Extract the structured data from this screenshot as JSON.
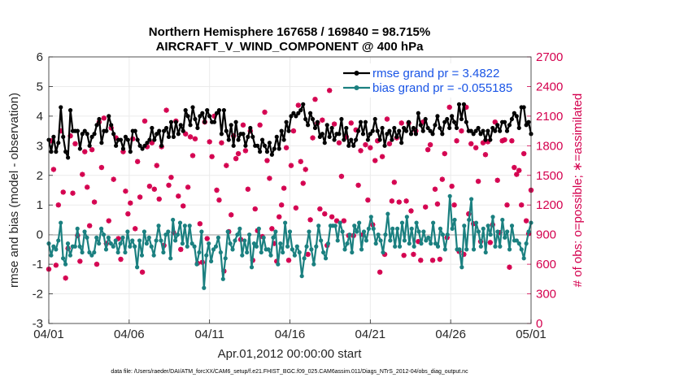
{
  "chart_data": {
    "type": "line",
    "title": "Northern Hemisphere 167658 / 169840 = 98.715%",
    "subtitle": "AIRCRAFT_V_WIND_COMPONENT @ 400 hPa",
    "xlabel": "Apr.01,2012 00:00:00 start",
    "ylabel": "rmse and bias (model - observation)",
    "y2label": "# of obs: o=possible; ∗=assimilated",
    "xlim": [
      0,
      30
    ],
    "ylim": [
      -3,
      6
    ],
    "y2lim": [
      0,
      2700
    ],
    "x_ticks": [
      0,
      5,
      10,
      15,
      20,
      25,
      30
    ],
    "x_tick_labels": [
      "04/01",
      "04/06",
      "04/11",
      "04/16",
      "04/21",
      "04/26",
      "05/01"
    ],
    "y_ticks": [
      "-3",
      "-2",
      "-1",
      "0",
      "1",
      "2",
      "3",
      "4",
      "5",
      "6"
    ],
    "y2_ticks": [
      "0",
      "300",
      "600",
      "900",
      "1200",
      "1500",
      "1800",
      "2100",
      "2400",
      "2700"
    ],
    "footnote": "data file: /Users/raeder/DAI/ATM_forcXX/CAM6_setup/f.e21.FHIST_BGC.f09_025.CAM6assim.011/Diags_NTrS_2012-04/obs_diag_output.nc",
    "legend_position": "top-right",
    "series": [
      {
        "name": "rmse grand pr = 3.4822",
        "color": "#000000",
        "axis": "left",
        "values": [
          3.2,
          2.8,
          3.3,
          2.8,
          3.1,
          4.3,
          3.3,
          2.8,
          2.6,
          4.2,
          3.5,
          3.5,
          3.5,
          2.9,
          3.4,
          3.5,
          3.4,
          3.0,
          3.3,
          3.4,
          3.7,
          3.9,
          3.1,
          3.5,
          3.5,
          4.0,
          3.7,
          3.4,
          3.0,
          3.2,
          3.2,
          2.9,
          3.3,
          3.2,
          2.8,
          3.5,
          3.5,
          3.2,
          3.0,
          2.9,
          3.0,
          3.1,
          3.2,
          3.6,
          3.2,
          3.4,
          3.5,
          3.0,
          3.5,
          3.6,
          3.3,
          3.8,
          3.3,
          3.8,
          3.4,
          3.7,
          3.5,
          4.2,
          4.0,
          3.7,
          4.3,
          3.9,
          3.6,
          4.0,
          4.1,
          3.8,
          4.2,
          4.0,
          3.8,
          3.8,
          4.1,
          4.2,
          3.4,
          4.2,
          3.5,
          3.2,
          3.7,
          3.0,
          3.8,
          3.2,
          3.4,
          3.4,
          3.0,
          3.3,
          3.6,
          3.3,
          3.0,
          3.0,
          2.8,
          3.2,
          3.0,
          2.8,
          3.1,
          2.7,
          2.9,
          3.3,
          2.9,
          3.5,
          3.2,
          3.8,
          3.5,
          4.0,
          4.1,
          4.0,
          4.1,
          4.2,
          4.4,
          3.9,
          3.7,
          4.1,
          3.9,
          3.6,
          3.8,
          3.3,
          3.4,
          3.1,
          3.7,
          3.3,
          3.6,
          3.2,
          3.4,
          3.4,
          3.9,
          3.2,
          3.6,
          3.0,
          3.2,
          3.0,
          3.2,
          3.5,
          3.8,
          3.4,
          3.8,
          3.2,
          3.4,
          3.5,
          3.9,
          3.5,
          3.2,
          3.6,
          3.0,
          3.4,
          3.5,
          3.2,
          3.6,
          3.3,
          3.5,
          3.1,
          3.6,
          3.5,
          3.8,
          3.4,
          3.6,
          3.4,
          4.1,
          3.7,
          3.5,
          3.9,
          3.6,
          3.5,
          3.4,
          3.7,
          4.0,
          3.6,
          3.4,
          3.8,
          3.9,
          3.6,
          4.0,
          3.8,
          3.6,
          4.4,
          3.9,
          4.4,
          3.8,
          3.5,
          3.5,
          3.4,
          3.5,
          3.6,
          3.4,
          3.5,
          3.2,
          3.5,
          3.2,
          3.6,
          3.5,
          3.7,
          3.5,
          3.8,
          3.8,
          3.5,
          3.7,
          3.9,
          4.1,
          4.0,
          3.6,
          4.3,
          4.3,
          3.7,
          3.8,
          3.4
        ]
      },
      {
        "name": "bias grand pr = -0.055185",
        "color": "#1b8080",
        "axis": "left",
        "values": [
          -0.3,
          -0.7,
          -0.4,
          -0.5,
          -0.2,
          0.4,
          -0.8,
          -1.0,
          -0.3,
          -0.7,
          -0.4,
          -0.4,
          0.2,
          -0.4,
          -0.6,
          0.1,
          -0.1,
          -0.6,
          -0.7,
          -0.6,
          -0.1,
          -0.3,
          0.2,
          0.0,
          -0.5,
          -0.1,
          -0.3,
          -0.4,
          -0.2,
          -0.6,
          -0.3,
          -0.1,
          -0.6,
          0.1,
          -0.4,
          -0.2,
          -0.4,
          -1.1,
          -0.2,
          -0.7,
          0.1,
          -0.3,
          -0.1,
          -0.4,
          -0.7,
          -0.2,
          0.3,
          -0.2,
          -0.6,
          0.0,
          0.1,
          -0.8,
          0.5,
          -0.2,
          0.0,
          0.4,
          -0.3,
          0.3,
          -0.4,
          0.3,
          -0.3,
          -0.4,
          -1.0,
          -0.6,
          0.1,
          -1.8,
          -0.7,
          -0.3,
          -0.9,
          -0.5,
          -0.4,
          -0.1,
          -0.6,
          -1.5,
          -0.8,
          0.1,
          -0.3,
          -0.5,
          -0.2,
          0.0,
          0.2,
          -0.7,
          -0.2,
          -0.6,
          0.0,
          -1.1,
          -0.3,
          -0.4,
          0.2,
          -0.6,
          -0.1,
          -0.5,
          -0.5,
          -0.7,
          -0.1,
          0.1,
          -1.0,
          -0.3,
          -0.6,
          0.4,
          -0.4,
          0.1,
          -0.5,
          -0.7,
          -0.4,
          -0.6,
          -1.4,
          -0.8,
          -0.4,
          0.1,
          -0.5,
          -1.0,
          -0.4,
          0.3,
          -0.2,
          -0.6,
          -0.8,
          -0.3,
          0.3,
          0.3,
          0.3,
          -0.2,
          0.4,
          0.1,
          -0.5,
          -0.3,
          0.0,
          -0.6,
          0.3,
          0.1,
          0.4,
          -0.5,
          0.1,
          -0.2,
          0.2,
          0.6,
          0.2,
          -0.3,
          0.0,
          -0.2,
          -0.6,
          0.0,
          0.7,
          -0.2,
          0.2,
          -0.4,
          0.2,
          -0.4,
          0.4,
          -0.2,
          0.6,
          -0.3,
          0.2,
          -0.4,
          0.4,
          0.1,
          -0.3,
          0.1,
          -0.2,
          -0.1,
          -0.3,
          0.4,
          -0.3,
          -0.4,
          0.2,
          0.0,
          -0.5,
          0.0,
          1.3,
          0.2,
          0.5,
          -0.5,
          -0.5,
          -1.1,
          0.3,
          -0.5,
          0.5,
          1.2,
          -0.5,
          0.4,
          0.1,
          -0.4,
          0.2,
          -0.6,
          0.3,
          0.0,
          0.6,
          -0.4,
          0.1,
          -0.4,
          0.5,
          -0.1,
          0.1,
          -0.5,
          0.3,
          -0.2,
          -0.2,
          -0.3,
          -0.5,
          -0.8,
          -0.3,
          0.1,
          0.4
        ]
      },
      {
        "name": "possible",
        "marker": "o",
        "color": "#d4004e",
        "axis": "right",
        "values": [
          550,
          1850,
          1560,
          590,
          1200,
          1950,
          1330,
          460,
          760,
          1900,
          1320,
          1820,
          890,
          630,
          1510,
          1740,
          1380,
          990,
          1760,
          1230,
          600,
          2040,
          1580,
          2080,
          810,
          1040,
          1980,
          1460,
          1880,
          860,
          650,
          1740,
          1340,
          1110,
          1220,
          1870,
          960,
          1640,
          1280,
          520,
          2050,
          1790,
          1390,
          1830,
          1360,
          1600,
          1260,
          1790,
          790,
          2160,
          1400,
          1480,
          920,
          2050,
          1290,
          750,
          1190,
          1920,
          1380,
          1890,
          1700,
          1870,
          610,
          1010,
          620,
          2040,
          860,
          1840,
          1690,
          2100,
          1350,
          1250,
          1830,
          530,
          1600,
          930,
          1100,
          1900,
          1670,
          1720,
          850,
          2010,
          1750,
          1360,
          1950,
          640,
          1160,
          940,
          2010,
          880,
          2140,
          1650,
          1470,
          960,
          810,
          630,
          1080,
          1200,
          1370,
          1780,
          640,
          1600,
          1950,
          1170,
          2210,
          1640,
          1420,
          1560,
          700,
          1050,
          1880,
          2270,
          2030,
          1160,
          2060,
          1110,
          790,
          2360,
          1080,
          2020,
          1040,
          1830,
          1490,
          1040,
          1890,
          890,
          2030,
          890,
          1960,
          1400,
          1750,
          900,
          1810,
          1250,
          1780,
          1000,
          1650,
          1850,
          520,
          1690,
          700,
          2070,
          1820,
          1240,
          1430,
          1880,
          1230,
          2030,
          690,
          1240,
          2030,
          1140,
          700,
          1950,
          830,
          640,
          2040,
          1180,
          1760,
          1810,
          640,
          1360,
          1210,
          650,
          1460,
          1720,
          870,
          2190,
          1390,
          1200,
          1850,
          730,
          1950,
          700,
          2190,
          1110,
          1820,
          1010,
          1780,
          1440,
          830,
          1830,
          1710,
          1840,
          820,
          1000,
          2040,
          1450,
          920,
          1850,
          1860,
          1200,
          570,
          1850,
          1580,
          1510,
          1550,
          1200,
          1720,
          1040,
          910,
          1350
        ]
      },
      {
        "name": "assimilated",
        "marker": "*",
        "color": "#d4004e",
        "axis": "right",
        "values": [
          550,
          1850,
          1560,
          590,
          1200,
          1950,
          1330,
          460,
          760,
          1900,
          1320,
          1820,
          890,
          630,
          1510,
          1740,
          1380,
          990,
          1760,
          1230,
          600,
          2040,
          1580,
          2080,
          810,
          1040,
          1980,
          1460,
          1880,
          860,
          650,
          1740,
          1340,
          1110,
          1220,
          1870,
          960,
          1640,
          1280,
          520,
          2050,
          1790,
          1390,
          1830,
          1360,
          1600,
          1260,
          1790,
          790,
          2160,
          1400,
          1480,
          920,
          2050,
          1290,
          750,
          1190,
          1920,
          1380,
          1890,
          1700,
          1870,
          610,
          1010,
          620,
          2040,
          860,
          1840,
          1690,
          2100,
          1350,
          1250,
          1830,
          530,
          1600,
          930,
          1100,
          1900,
          1670,
          1720,
          850,
          2010,
          1750,
          1360,
          1950,
          640,
          1160,
          940,
          2010,
          880,
          2140,
          1650,
          1470,
          960,
          810,
          630,
          1080,
          1200,
          1370,
          1780,
          640,
          1600,
          1950,
          1170,
          2210,
          1640,
          1420,
          1560,
          700,
          1050,
          1880,
          2270,
          2030,
          1160,
          2060,
          1110,
          790,
          2360,
          1080,
          2020,
          1040,
          1830,
          1490,
          1040,
          1890,
          890,
          2030,
          890,
          1960,
          1400,
          1750,
          900,
          1810,
          1250,
          1780,
          1000,
          1650,
          1850,
          520,
          1690,
          700,
          2070,
          1820,
          1240,
          1430,
          1880,
          1230,
          2030,
          690,
          1240,
          2030,
          1140,
          700,
          1950,
          830,
          640,
          2040,
          1180,
          1760,
          1810,
          640,
          1360,
          1210,
          650,
          1460,
          1720,
          870,
          2190,
          1390,
          1200,
          1850,
          730,
          1950,
          700,
          2190,
          1110,
          1820,
          1010,
          1780,
          1440,
          830,
          1830,
          1710,
          1840,
          820,
          1000,
          2040,
          1450,
          920,
          1850,
          1860,
          1200,
          570,
          1850,
          1580,
          1510,
          1550,
          1200,
          1720,
          1040,
          910,
          1350
        ]
      }
    ]
  }
}
